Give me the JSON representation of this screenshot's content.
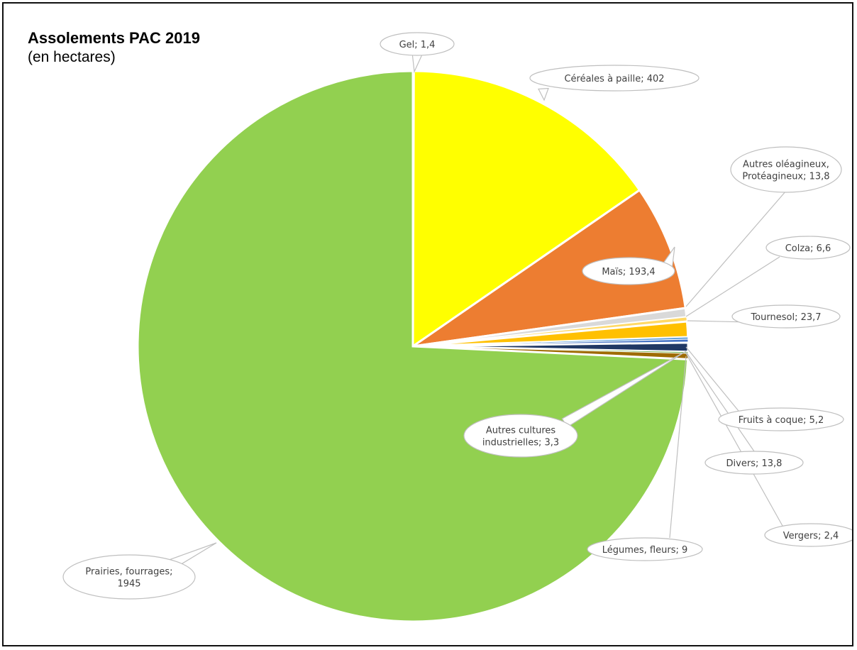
{
  "chart_data": {
    "type": "pie",
    "title": "Assolements PAC 2019",
    "subtitle": "(en hectares)",
    "slices": [
      {
        "label": "Gel",
        "value": 1.4,
        "display_value": "1,4",
        "color": "#a5a5a5"
      },
      {
        "label": "Céréales à paille",
        "value": 402,
        "display_value": "402",
        "color": "#ffff00"
      },
      {
        "label": "Maïs",
        "value": 193.4,
        "display_value": "193,4",
        "color": "#ed7d31"
      },
      {
        "label": "Autres oléagineux, Protéagineux",
        "value": 13.8,
        "display_value": "13,8",
        "color": "#d9d9d9"
      },
      {
        "label": "Colza",
        "value": 6.6,
        "display_value": "6,6",
        "color": "#ffd966"
      },
      {
        "label": "Tournesol",
        "value": 23.7,
        "display_value": "23,7",
        "color": "#ffc000"
      },
      {
        "label": "Autres cultures industrielles",
        "value": 3.3,
        "display_value": "3,3",
        "color": "#5b9bd5"
      },
      {
        "label": "Fruits à coque",
        "value": 5.2,
        "display_value": "5,2",
        "color": "#4472c4"
      },
      {
        "label": "Divers",
        "value": 13.8,
        "display_value": "13,8",
        "color": "#203864"
      },
      {
        "label": "Vergers",
        "value": 2.4,
        "display_value": "2,4",
        "color": "#70ad47"
      },
      {
        "label": "Légumes, fleurs",
        "value": 9,
        "display_value": "9",
        "color": "#9e6b00"
      },
      {
        "label": "Prairies, fourrages",
        "value": 1945,
        "display_value": "1945",
        "color": "#92d050"
      }
    ]
  },
  "callouts": [
    {
      "lines": [
        "Gel; 1,4"
      ]
    },
    {
      "lines": [
        "Céréales à paille; 402"
      ]
    },
    {
      "lines": [
        "Maïs; 193,4"
      ]
    },
    {
      "lines": [
        "Autres oléagineux,",
        "Protéagineux; 13,8"
      ]
    },
    {
      "lines": [
        "Colza; 6,6"
      ]
    },
    {
      "lines": [
        "Tournesol; 23,7"
      ]
    },
    {
      "lines": [
        "Autres cultures",
        "industrielles; 3,3"
      ]
    },
    {
      "lines": [
        "Fruits à coque; 5,2"
      ]
    },
    {
      "lines": [
        "Divers; 13,8"
      ]
    },
    {
      "lines": [
        "Vergers; 2,4"
      ]
    },
    {
      "lines": [
        "Légumes, fleurs; 9"
      ]
    },
    {
      "lines": [
        "Prairies, fourrages;",
        "1945"
      ]
    }
  ]
}
